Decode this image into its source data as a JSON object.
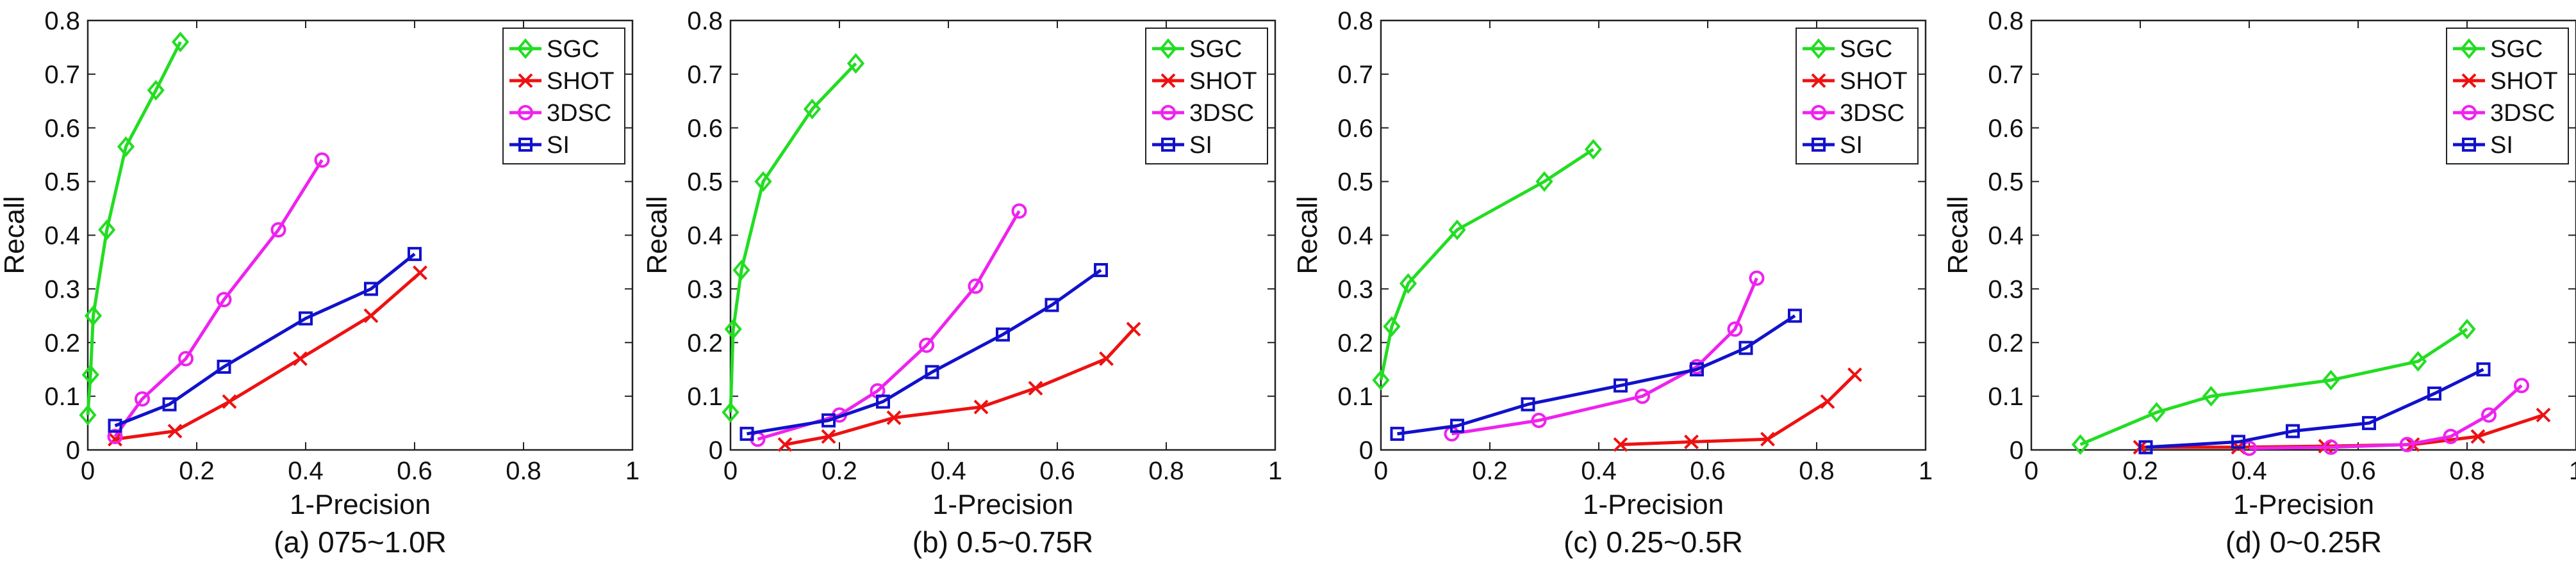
{
  "chart_data": [
    {
      "type": "line",
      "caption": "(a) 075~1.0R",
      "xlabel": "1-Precision",
      "ylabel": "Recall",
      "xlim": [
        0,
        1
      ],
      "ylim": [
        0,
        0.8
      ],
      "xticks": [
        "0",
        "0.2",
        "0.4",
        "0.6",
        "0.8",
        "1"
      ],
      "yticks": [
        "0",
        "0.1",
        "0.2",
        "0.3",
        "0.4",
        "0.5",
        "0.6",
        "0.7",
        "0.8"
      ],
      "legend_position": "top-right",
      "series": [
        {
          "name": "SGC",
          "color": "#22dd22",
          "marker": "diamond",
          "x": [
            0.0,
            0.005,
            0.01,
            0.035,
            0.07,
            0.125,
            0.17
          ],
          "y": [
            0.065,
            0.14,
            0.25,
            0.41,
            0.565,
            0.67,
            0.76
          ]
        },
        {
          "name": "SHOT",
          "color": "#ee1111",
          "marker": "x",
          "x": [
            0.05,
            0.16,
            0.26,
            0.39,
            0.52,
            0.61
          ],
          "y": [
            0.02,
            0.035,
            0.09,
            0.17,
            0.25,
            0.33
          ]
        },
        {
          "name": "3DSC",
          "color": "#ee22ee",
          "marker": "circle",
          "x": [
            0.05,
            0.1,
            0.18,
            0.25,
            0.35,
            0.43
          ],
          "y": [
            0.025,
            0.095,
            0.17,
            0.28,
            0.41,
            0.54
          ]
        },
        {
          "name": "SI",
          "color": "#1111cc",
          "marker": "square",
          "x": [
            0.05,
            0.15,
            0.25,
            0.4,
            0.52,
            0.6
          ],
          "y": [
            0.045,
            0.085,
            0.155,
            0.245,
            0.3,
            0.365
          ]
        }
      ]
    },
    {
      "type": "line",
      "caption": "(b) 0.5~0.75R",
      "xlabel": "1-Precision",
      "ylabel": "Recall",
      "xlim": [
        0,
        1
      ],
      "ylim": [
        0,
        0.8
      ],
      "xticks": [
        "0",
        "0.2",
        "0.4",
        "0.6",
        "0.8",
        "1"
      ],
      "yticks": [
        "0",
        "0.1",
        "0.2",
        "0.3",
        "0.4",
        "0.5",
        "0.6",
        "0.7",
        "0.8"
      ],
      "legend_position": "top-right",
      "series": [
        {
          "name": "SGC",
          "color": "#22dd22",
          "marker": "diamond",
          "x": [
            0.0,
            0.005,
            0.02,
            0.06,
            0.15,
            0.23
          ],
          "y": [
            0.07,
            0.225,
            0.335,
            0.5,
            0.635,
            0.72
          ]
        },
        {
          "name": "SHOT",
          "color": "#ee1111",
          "marker": "x",
          "x": [
            0.1,
            0.18,
            0.3,
            0.46,
            0.56,
            0.69,
            0.74
          ],
          "y": [
            0.01,
            0.025,
            0.06,
            0.08,
            0.115,
            0.17,
            0.225
          ]
        },
        {
          "name": "3DSC",
          "color": "#ee22ee",
          "marker": "circle",
          "x": [
            0.05,
            0.2,
            0.27,
            0.36,
            0.45,
            0.53
          ],
          "y": [
            0.02,
            0.065,
            0.11,
            0.195,
            0.305,
            0.445
          ]
        },
        {
          "name": "SI",
          "color": "#1111cc",
          "marker": "square",
          "x": [
            0.03,
            0.18,
            0.28,
            0.37,
            0.5,
            0.59,
            0.68
          ],
          "y": [
            0.03,
            0.055,
            0.09,
            0.145,
            0.215,
            0.27,
            0.335
          ]
        }
      ]
    },
    {
      "type": "line",
      "caption": "(c) 0.25~0.5R",
      "xlabel": "1-Precision",
      "ylabel": "Recall",
      "xlim": [
        0,
        1
      ],
      "ylim": [
        0,
        0.8
      ],
      "xticks": [
        "0",
        "0.2",
        "0.4",
        "0.6",
        "0.8",
        "1"
      ],
      "yticks": [
        "0",
        "0.1",
        "0.2",
        "0.3",
        "0.4",
        "0.5",
        "0.6",
        "0.7",
        "0.8"
      ],
      "legend_position": "top-right",
      "series": [
        {
          "name": "SGC",
          "color": "#22dd22",
          "marker": "diamond",
          "x": [
            0.0,
            0.02,
            0.05,
            0.14,
            0.3,
            0.39
          ],
          "y": [
            0.13,
            0.23,
            0.31,
            0.41,
            0.5,
            0.56
          ]
        },
        {
          "name": "SHOT",
          "color": "#ee1111",
          "marker": "x",
          "x": [
            0.44,
            0.57,
            0.71,
            0.82,
            0.87
          ],
          "y": [
            0.01,
            0.015,
            0.02,
            0.09,
            0.14
          ]
        },
        {
          "name": "3DSC",
          "color": "#ee22ee",
          "marker": "circle",
          "x": [
            0.13,
            0.29,
            0.48,
            0.58,
            0.65,
            0.69
          ],
          "y": [
            0.03,
            0.055,
            0.1,
            0.155,
            0.225,
            0.32
          ]
        },
        {
          "name": "SI",
          "color": "#1111cc",
          "marker": "square",
          "x": [
            0.03,
            0.14,
            0.27,
            0.44,
            0.58,
            0.67,
            0.76
          ],
          "y": [
            0.03,
            0.045,
            0.085,
            0.12,
            0.15,
            0.19,
            0.25
          ]
        }
      ]
    },
    {
      "type": "line",
      "caption": "(d) 0~0.25R",
      "xlabel": "1-Precision",
      "ylabel": "Recall",
      "xlim": [
        0,
        1
      ],
      "ylim": [
        0,
        0.8
      ],
      "xticks": [
        "0",
        "0.2",
        "0.4",
        "0.6",
        "0.8",
        "1"
      ],
      "yticks": [
        "0",
        "0.1",
        "0.2",
        "0.3",
        "0.4",
        "0.5",
        "0.6",
        "0.7",
        "0.8"
      ],
      "legend_position": "top-right",
      "series": [
        {
          "name": "SGC",
          "color": "#22dd22",
          "marker": "diamond",
          "x": [
            0.09,
            0.23,
            0.33,
            0.55,
            0.71,
            0.8
          ],
          "y": [
            0.01,
            0.07,
            0.1,
            0.13,
            0.165,
            0.225
          ]
        },
        {
          "name": "SHOT",
          "color": "#ee1111",
          "marker": "x",
          "x": [
            0.2,
            0.38,
            0.54,
            0.7,
            0.82,
            0.94
          ],
          "y": [
            0.005,
            0.005,
            0.007,
            0.01,
            0.025,
            0.065
          ]
        },
        {
          "name": "3DSC",
          "color": "#ee22ee",
          "marker": "circle",
          "x": [
            0.4,
            0.55,
            0.69,
            0.77,
            0.84,
            0.9
          ],
          "y": [
            0.003,
            0.005,
            0.01,
            0.025,
            0.065,
            0.12
          ]
        },
        {
          "name": "SI",
          "color": "#1111cc",
          "marker": "square",
          "x": [
            0.21,
            0.38,
            0.48,
            0.62,
            0.74,
            0.83
          ],
          "y": [
            0.005,
            0.015,
            0.035,
            0.05,
            0.105,
            0.15
          ]
        }
      ]
    }
  ]
}
